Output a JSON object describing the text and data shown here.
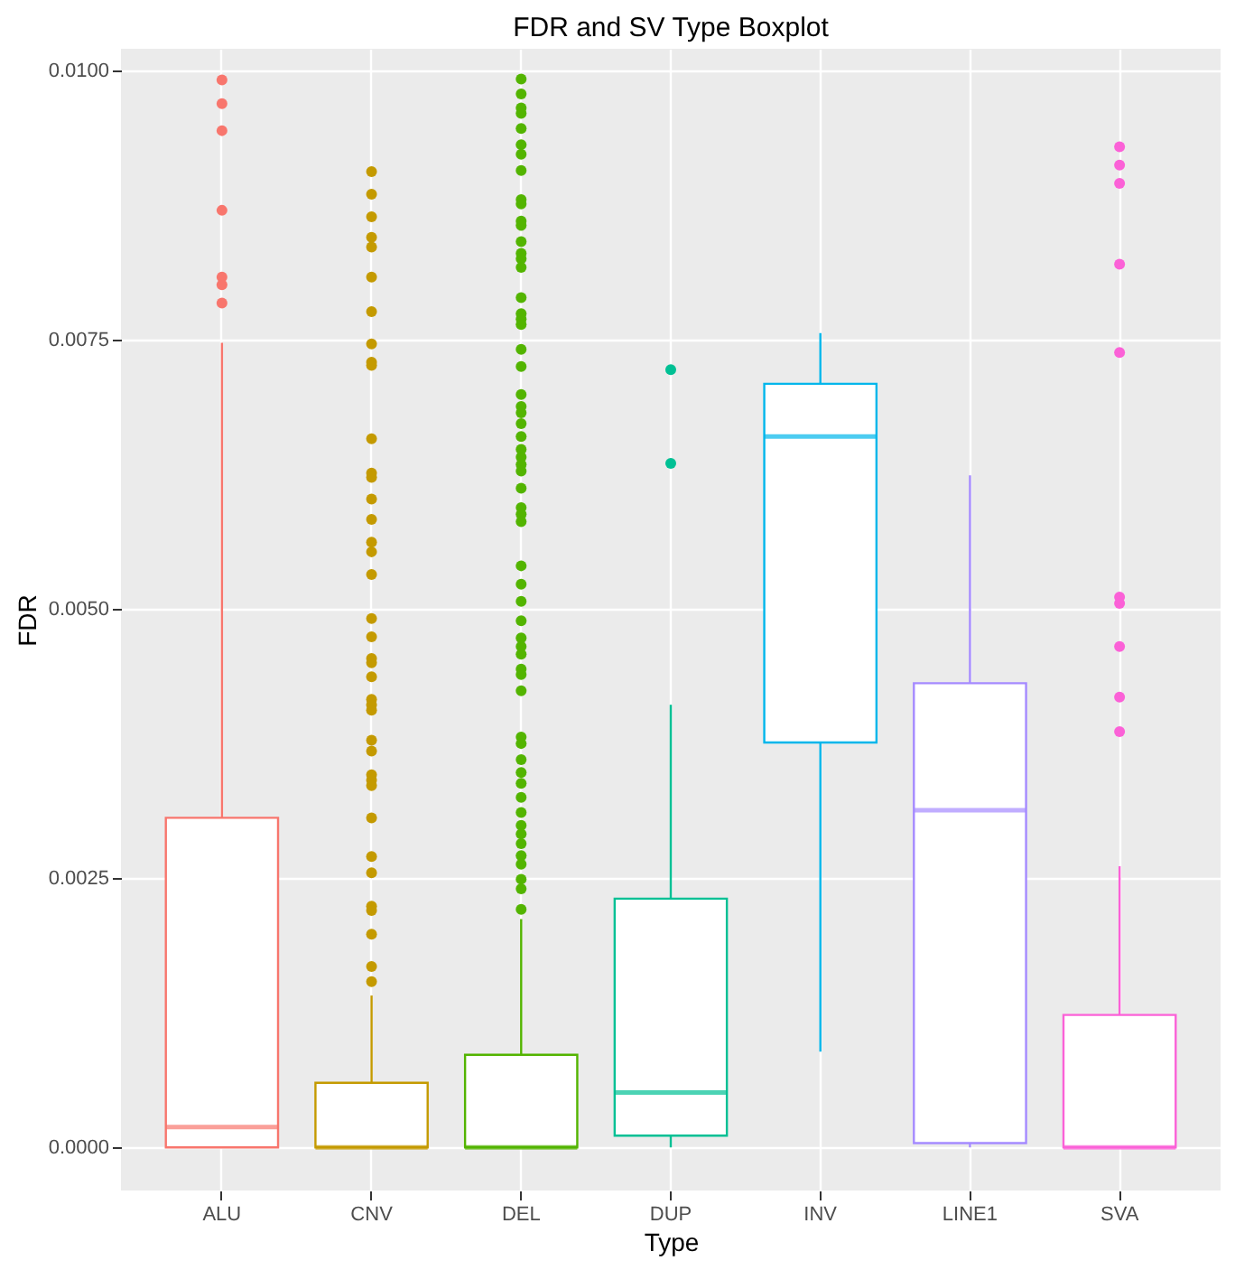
{
  "chart_data": {
    "type": "box",
    "title": "FDR and SV Type Boxplot",
    "xlabel": "Type",
    "ylabel": "FDR",
    "categories": [
      "ALU",
      "CNV",
      "DEL",
      "DUP",
      "INV",
      "LINE1",
      "SVA"
    ],
    "colors": [
      "#f8766d",
      "#c49a00",
      "#53b400",
      "#00c094",
      "#00b6eb",
      "#a58aff",
      "#fb61d7"
    ],
    "boxes": [
      {
        "low": 0,
        "q1": 0,
        "median": 0.00019,
        "q3": 0.00306,
        "high": 0.00747,
        "outliers": [
          0.00991,
          0.00969,
          0.00944,
          0.0087,
          0.00808,
          0.00801,
          0.00784
        ]
      },
      {
        "low": 0,
        "q1": 0,
        "median": 0,
        "q3": 0.0006,
        "high": 0.00141,
        "outliers": [
          0.00906,
          0.00885,
          0.00864,
          0.00845,
          0.00836,
          0.00808,
          0.00776,
          0.00746,
          0.00729,
          0.00726,
          0.00658,
          0.00626,
          0.00622,
          0.00602,
          0.00583,
          0.00562,
          0.00553,
          0.00532,
          0.00491,
          0.00474,
          0.00454,
          0.0045,
          0.00437,
          0.00416,
          0.00411,
          0.00406,
          0.00378,
          0.00368,
          0.00346,
          0.00341,
          0.00336,
          0.00306,
          0.0027,
          0.00255,
          0.00224,
          0.0022,
          0.00198,
          0.00168,
          0.00154
        ]
      },
      {
        "low": 0,
        "q1": 0,
        "median": 0,
        "q3": 0.00086,
        "high": 0.00212,
        "outliers": [
          0.00992,
          0.00978,
          0.00965,
          0.0096,
          0.00946,
          0.00931,
          0.00922,
          0.00907,
          0.0088,
          0.00876,
          0.0086,
          0.00856,
          0.00841,
          0.0083,
          0.00825,
          0.00817,
          0.00789,
          0.00774,
          0.00769,
          0.00764,
          0.00741,
          0.00725,
          0.00699,
          0.00688,
          0.00682,
          0.00672,
          0.0066,
          0.00648,
          0.00641,
          0.00634,
          0.00628,
          0.00612,
          0.00594,
          0.00588,
          0.00581,
          0.0054,
          0.00523,
          0.00507,
          0.00489,
          0.00473,
          0.00465,
          0.00458,
          0.00444,
          0.00439,
          0.00424,
          0.00381,
          0.00375,
          0.0036,
          0.00348,
          0.00338,
          0.00325,
          0.00311,
          0.00299,
          0.00291,
          0.00282,
          0.00271,
          0.00263,
          0.00249,
          0.0024,
          0.00221
        ]
      },
      {
        "low": 0,
        "q1": 0.00011,
        "median": 0.00051,
        "q3": 0.00231,
        "high": 0.00411,
        "outliers": [
          0.00722,
          0.00635
        ]
      },
      {
        "low": 0.00089,
        "q1": 0.00376,
        "median": 0.0066,
        "q3": 0.00709,
        "high": 0.00756
      },
      {
        "low": 0,
        "q1": 4e-05,
        "median": 0.00313,
        "q3": 0.00431,
        "high": 0.00624
      },
      {
        "low": 0,
        "q1": 0,
        "median": 0,
        "q3": 0.00123,
        "high": 0.00261,
        "outliers": [
          0.00929,
          0.00912,
          0.00895,
          0.0082,
          0.00738,
          0.00511,
          0.00505,
          0.00465,
          0.00418,
          0.00386
        ]
      }
    ],
    "ylim": [
      -0.0004,
      0.0102
    ],
    "yticks": [
      {
        "value": 0,
        "label": "0.0000"
      },
      {
        "value": 0.0025,
        "label": "0.0025"
      },
      {
        "value": 0.005,
        "label": "0.0050"
      },
      {
        "value": 0.0075,
        "label": "0.0075"
      },
      {
        "value": 0.01,
        "label": "0.0100"
      }
    ],
    "grid": true,
    "legend": false,
    "marker": "circle"
  }
}
